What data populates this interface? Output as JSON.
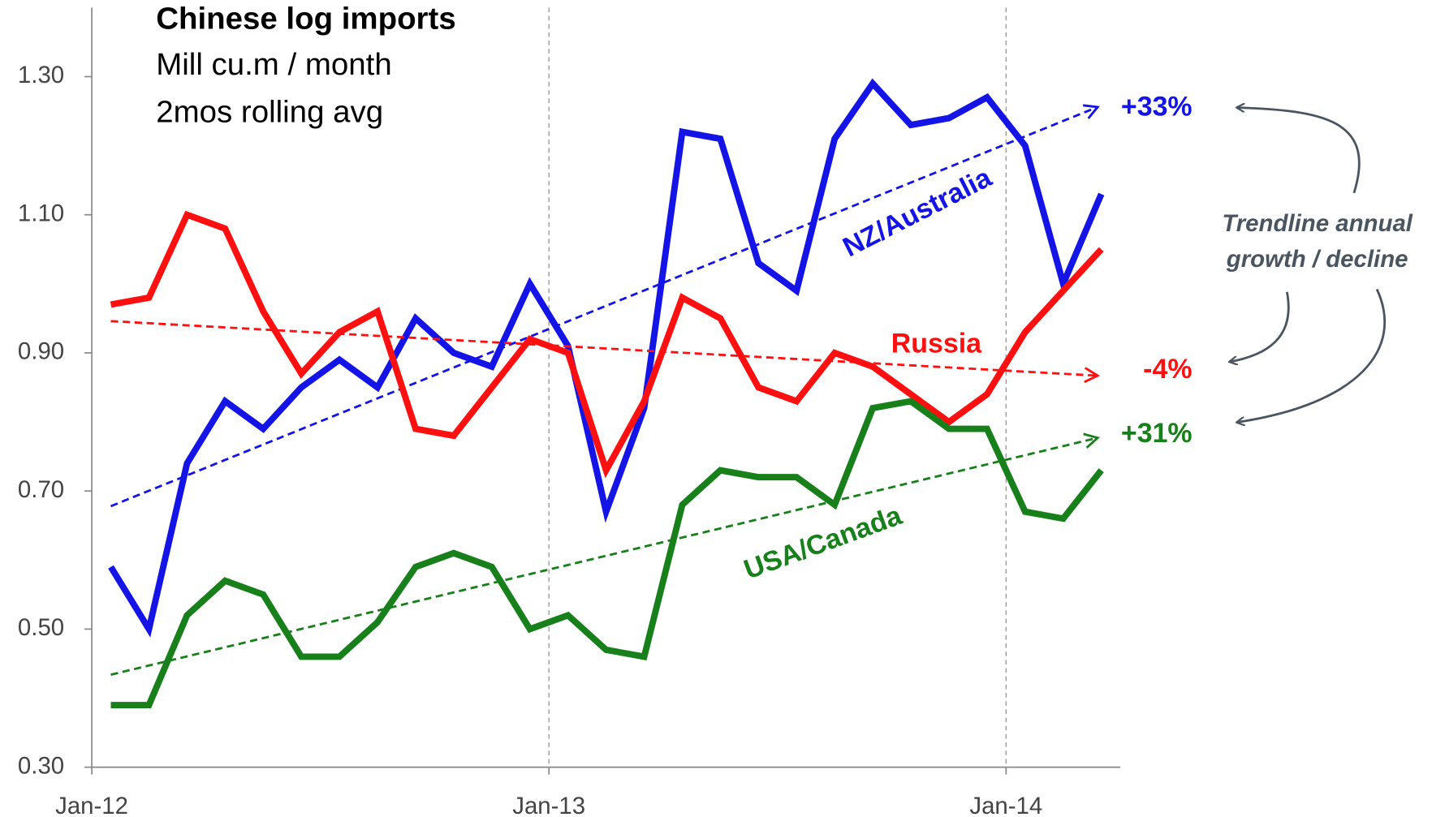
{
  "chart_data": {
    "type": "line",
    "title": "Chinese log imports",
    "subtitle": [
      "Mill cu.m / month",
      "2mos rolling avg"
    ],
    "categories": [
      "Jan-12",
      null,
      null,
      null,
      null,
      null,
      null,
      null,
      null,
      null,
      null,
      null,
      "Jan-13",
      null,
      null,
      null,
      null,
      null,
      null,
      null,
      null,
      null,
      null,
      null,
      "Jan-14",
      null,
      null
    ],
    "ylim": [
      0.3,
      1.4
    ],
    "yticks": [
      {
        "value": 0.3,
        "label": "0.30"
      },
      {
        "value": 0.5,
        "label": "0.50"
      },
      {
        "value": 0.7,
        "label": "0.70"
      },
      {
        "value": 0.9,
        "label": "0.90"
      },
      {
        "value": 1.1,
        "label": "1.10"
      },
      {
        "value": 1.3,
        "label": "1.30"
      }
    ],
    "series": [
      {
        "name": "NZ/Australia",
        "color": "#1414e6",
        "growth": "+33%",
        "trend": [
          0.678,
          1.256
        ],
        "values": [
          0.59,
          0.5,
          0.74,
          0.83,
          0.79,
          0.85,
          0.89,
          0.85,
          0.95,
          0.9,
          0.88,
          1.0,
          0.91,
          0.67,
          0.82,
          1.22,
          1.21,
          1.03,
          0.99,
          1.21,
          1.29,
          1.23,
          1.24,
          1.27,
          1.2,
          1.0,
          1.13
        ]
      },
      {
        "name": "Russia",
        "color": "#ff1010",
        "growth": "-4%",
        "trend": [
          0.946,
          0.867
        ],
        "values": [
          0.97,
          0.98,
          1.1,
          1.08,
          0.96,
          0.87,
          0.93,
          0.96,
          0.79,
          0.78,
          0.85,
          0.92,
          0.9,
          0.73,
          0.83,
          0.98,
          0.95,
          0.85,
          0.83,
          0.9,
          0.88,
          0.84,
          0.8,
          0.84,
          0.93,
          0.99,
          1.05
        ]
      },
      {
        "name": "USA/Canada",
        "color": "#17801a",
        "growth": "+31%",
        "trend": [
          0.434,
          0.777
        ],
        "values": [
          0.39,
          0.39,
          0.52,
          0.57,
          0.55,
          0.46,
          0.46,
          0.51,
          0.59,
          0.61,
          0.59,
          0.5,
          0.52,
          0.47,
          0.46,
          0.68,
          0.73,
          0.72,
          0.72,
          0.68,
          0.82,
          0.83,
          0.79,
          0.79,
          0.67,
          0.66,
          0.73
        ]
      }
    ],
    "annotation": [
      "Trendline annual",
      "growth / decline"
    ]
  }
}
